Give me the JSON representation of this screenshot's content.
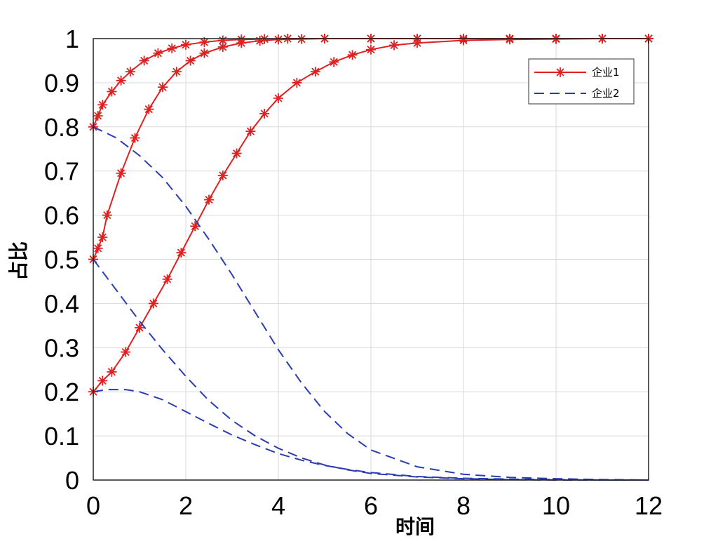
{
  "chart_data": {
    "type": "line",
    "title": "",
    "xlabel": "时间",
    "ylabel": "占比",
    "xlim": [
      0,
      12
    ],
    "ylim": [
      0,
      1
    ],
    "xticks": [
      0,
      2,
      4,
      6,
      8,
      10,
      12
    ],
    "yticks": [
      0,
      0.1,
      0.2,
      0.3,
      0.4,
      0.5,
      0.6,
      0.7,
      0.8,
      0.9,
      1
    ],
    "grid": true,
    "legend": {
      "placement": "top-right",
      "entries": [
        "企业1",
        "企业2"
      ]
    },
    "series": [
      {
        "name": "企业1",
        "style": "solid-star",
        "color": "#e02020",
        "curves": [
          {
            "x": [
              0,
              0.1,
              0.2,
              0.4,
              0.6,
              0.8,
              1.1,
              1.4,
              1.7,
              2.0,
              2.4,
              2.8,
              3.2,
              3.7,
              4.2,
              5,
              6,
              7,
              8,
              9,
              10,
              11,
              12
            ],
            "y": [
              0.8,
              0.825,
              0.85,
              0.88,
              0.905,
              0.925,
              0.95,
              0.967,
              0.978,
              0.986,
              0.992,
              0.996,
              0.998,
              0.999,
              1,
              1,
              1,
              1,
              1,
              1,
              1,
              1,
              1
            ]
          },
          {
            "x": [
              0,
              0.1,
              0.2,
              0.3,
              0.6,
              0.9,
              1.2,
              1.5,
              1.8,
              2.1,
              2.4,
              2.8,
              3.2,
              3.6,
              4.0,
              4.5,
              5,
              6,
              7,
              8,
              9,
              10,
              11,
              12
            ],
            "y": [
              0.5,
              0.525,
              0.55,
              0.6,
              0.695,
              0.775,
              0.84,
              0.89,
              0.925,
              0.95,
              0.967,
              0.981,
              0.99,
              0.995,
              0.998,
              0.999,
              1,
              1,
              1,
              1,
              1,
              1,
              1,
              1
            ]
          },
          {
            "x": [
              0,
              0.2,
              0.4,
              0.7,
              1.0,
              1.3,
              1.6,
              1.9,
              2.2,
              2.5,
              2.8,
              3.1,
              3.4,
              3.7,
              4.0,
              4.4,
              4.8,
              5.2,
              5.6,
              6.0,
              6.5,
              7,
              8,
              9,
              10,
              11,
              12
            ],
            "y": [
              0.2,
              0.225,
              0.245,
              0.29,
              0.345,
              0.4,
              0.455,
              0.515,
              0.575,
              0.635,
              0.69,
              0.74,
              0.79,
              0.83,
              0.865,
              0.9,
              0.925,
              0.947,
              0.963,
              0.975,
              0.985,
              0.99,
              0.996,
              0.998,
              0.999,
              1,
              1
            ]
          }
        ]
      },
      {
        "name": "企业2",
        "style": "dashed",
        "color": "#2a3cb0",
        "curves": [
          {
            "x": [
              0,
              0.5,
              1,
              1.5,
              2,
              2.5,
              3,
              3.5,
              4,
              4.5,
              5,
              5.5,
              6,
              7,
              8,
              9,
              10,
              11,
              12
            ],
            "y": [
              0.8,
              0.775,
              0.735,
              0.685,
              0.62,
              0.545,
              0.465,
              0.38,
              0.295,
              0.22,
              0.155,
              0.105,
              0.068,
              0.03,
              0.013,
              0.006,
              0.003,
              0.001,
              0
            ]
          },
          {
            "x": [
              0,
              0.5,
              1,
              1.5,
              2,
              2.5,
              3,
              3.5,
              4,
              4.5,
              5,
              5.5,
              6,
              7,
              8,
              9,
              10,
              11,
              12
            ],
            "y": [
              0.5,
              0.43,
              0.36,
              0.295,
              0.235,
              0.18,
              0.135,
              0.1,
              0.072,
              0.05,
              0.034,
              0.023,
              0.015,
              0.007,
              0.003,
              0.001,
              0,
              0,
              0
            ]
          },
          {
            "x": [
              0,
              0.3,
              0.7,
              1.0,
              1.5,
              2,
              2.5,
              3,
              3.5,
              4,
              4.5,
              5,
              5.5,
              6,
              7,
              8,
              9,
              10,
              11,
              12
            ],
            "y": [
              0.2,
              0.205,
              0.205,
              0.2,
              0.182,
              0.155,
              0.128,
              0.102,
              0.08,
              0.06,
              0.045,
              0.033,
              0.024,
              0.017,
              0.008,
              0.004,
              0.002,
              0.001,
              0,
              0
            ]
          }
        ]
      }
    ]
  }
}
